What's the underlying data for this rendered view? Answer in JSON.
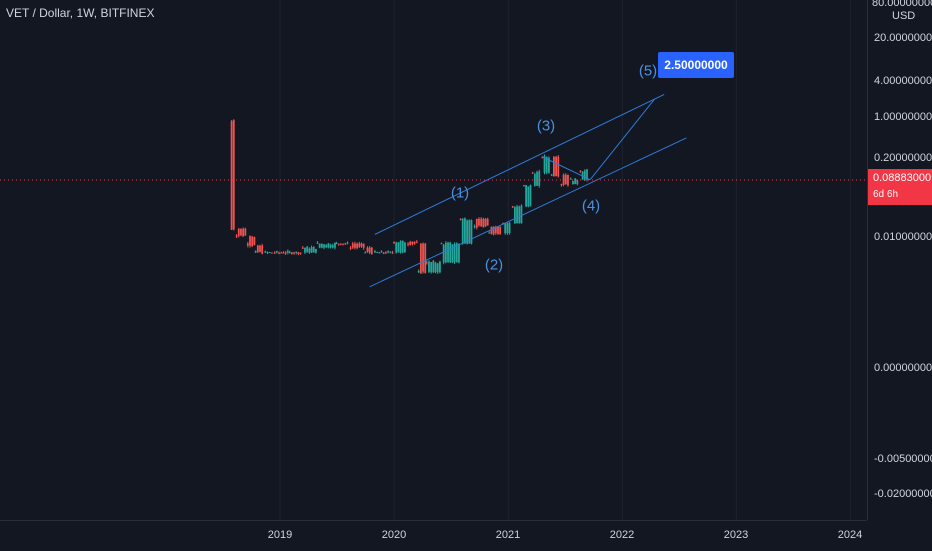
{
  "header": {
    "symbol": "VET / Dollar, 1W, BITFINEX"
  },
  "price_axis": {
    "unit": "USD",
    "top_label": "80.00000000",
    "ticks": [
      "20.00000000",
      "4.00000000",
      "1.00000000",
      "0.20000000",
      "0.01000000",
      "0.00000000",
      "-0.00500000",
      "-0.02000000"
    ]
  },
  "current_price": {
    "value": "0.08883000",
    "countdown": "6d 6h"
  },
  "target": {
    "label": "2.50000000"
  },
  "waves": [
    "(1)",
    "(2)",
    "(3)",
    "(4)",
    "(5)"
  ],
  "colors": {
    "background": "#131722",
    "up": "#26a69a",
    "down": "#ef5350",
    "channel": "#2f7bd6",
    "callout": "#2962ff",
    "price_line": "#f23645"
  },
  "chart_data": {
    "type": "candlestick",
    "title": "VET / Dollar, 1W, BITFINEX",
    "x_ticks": [
      "2019",
      "2020",
      "2021",
      "2022",
      "2023",
      "2024"
    ],
    "y_ticks": [
      "80.00000000",
      "20.00000000",
      "4.00000000",
      "1.00000000",
      "0.20000000",
      "0.01000000",
      "0.00000000",
      "-0.00500000",
      "-0.02000000"
    ],
    "series": [
      {
        "values": [
          [
            "2018-07-30",
            1.0,
            0.011
          ],
          [
            "2018-08-15",
            0.012,
            0.009
          ],
          [
            "2018-09-20",
            0.009,
            0.0065
          ],
          [
            "2018-10-15",
            0.006,
            0.0045
          ],
          [
            "2018-11-15",
            0.0045,
            0.0045
          ],
          [
            "2018-12-15",
            0.0045,
            0.0045
          ],
          [
            "2019-02-01",
            0.0045,
            0.0045
          ],
          [
            "2019-03-15",
            0.0045,
            0.0055
          ],
          [
            "2019-05-01",
            0.0055,
            0.0065
          ],
          [
            "2019-07-01",
            0.0065,
            0.0065
          ],
          [
            "2019-08-15",
            0.0065,
            0.0055
          ],
          [
            "2019-10-01",
            0.0055,
            0.0045
          ],
          [
            "2019-11-01",
            0.0045,
            0.0045
          ],
          [
            "2020-01-01",
            0.0045,
            0.007
          ],
          [
            "2020-02-15",
            0.007,
            0.0065
          ],
          [
            "2020-03-20",
            0.0065,
            0.002
          ],
          [
            "2020-04-15",
            0.002,
            0.003
          ],
          [
            "2020-06-01",
            0.003,
            0.0065
          ],
          [
            "2020-08-01",
            0.0065,
            0.018
          ],
          [
            "2020-09-15",
            0.018,
            0.013
          ],
          [
            "2020-11-01",
            0.013,
            0.01
          ],
          [
            "2020-12-15",
            0.01,
            0.015
          ],
          [
            "2021-01-15",
            0.015,
            0.03
          ],
          [
            "2021-02-20",
            0.03,
            0.07
          ],
          [
            "2021-03-20",
            0.07,
            0.12
          ],
          [
            "2021-04-20",
            0.12,
            0.23
          ],
          [
            "2021-05-20",
            0.23,
            0.11
          ],
          [
            "2021-06-20",
            0.11,
            0.075
          ],
          [
            "2021-07-20",
            0.075,
            0.09
          ],
          [
            "2021-08-20",
            0.09,
            0.13
          ],
          [
            "2021-09-20",
            0.13,
            0.0888
          ]
        ]
      }
    ],
    "annotations": [
      {
        "text": "(1)",
        "x": "2020-08-01",
        "y": 0.05
      },
      {
        "text": "(2)",
        "x": "2020-12-01",
        "y": 0.0016
      },
      {
        "text": "(3)",
        "x": "2021-04-15",
        "y": 0.75
      },
      {
        "text": "(4)",
        "x": "2021-09-25",
        "y": 0.035
      },
      {
        "text": "(5)",
        "x": "2022-03-15",
        "y": 6.5
      },
      {
        "text": "2.50000000",
        "x": "2022-05-15",
        "y": 2.5
      }
    ],
    "yscale": "log",
    "current_price": 0.08883
  }
}
